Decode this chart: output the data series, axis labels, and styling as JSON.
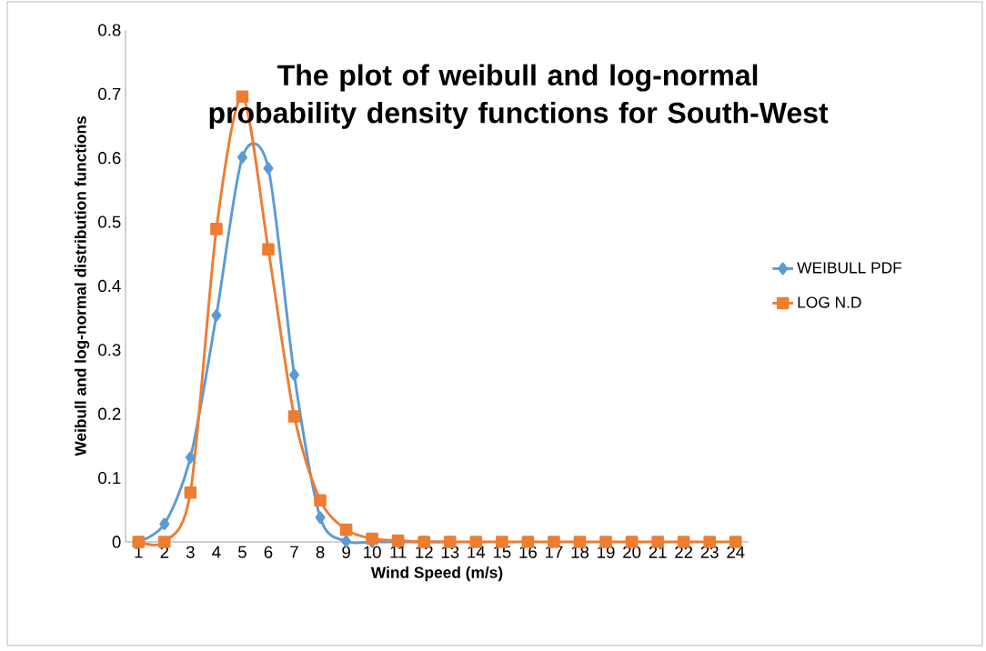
{
  "chart_data": {
    "type": "line",
    "title": "The plot of weibull and log-normal probability density functions for South-West",
    "xlabel": "Wind Speed (m/s)",
    "ylabel": "Weibull and log-normal distribution functions",
    "categories": [
      "1",
      "2",
      "3",
      "4",
      "5",
      "6",
      "7",
      "8",
      "9",
      "10",
      "11",
      "12",
      "13",
      "14",
      "15",
      "16",
      "17",
      "18",
      "19",
      "20",
      "21",
      "22",
      "23",
      "24"
    ],
    "series": [
      {
        "name": "WEIBULL PDF",
        "color": "#5b9bd5",
        "marker": "diamond",
        "values": [
          0,
          0.028,
          0.132,
          0.354,
          0.601,
          0.584,
          0.261,
          0.038,
          0.001,
          0,
          0,
          0,
          0,
          null,
          null,
          null,
          null,
          null,
          null,
          null,
          null,
          null,
          null,
          null
        ]
      },
      {
        "name": "LOG N.D",
        "color": "#ed7d31",
        "marker": "square",
        "values": [
          0,
          0,
          0.077,
          0.489,
          0.696,
          0.457,
          0.196,
          0.065,
          0.019,
          0.005,
          0.002,
          0,
          0,
          0,
          0,
          0,
          0,
          0,
          0,
          0,
          0,
          0,
          0,
          0
        ]
      }
    ],
    "ylim": [
      0,
      0.8
    ],
    "yticks": [
      0,
      0.1,
      0.2,
      0.3,
      0.4,
      0.5,
      0.6,
      0.7,
      0.8
    ],
    "grid": false,
    "legend": "right",
    "line_style": "solid"
  }
}
